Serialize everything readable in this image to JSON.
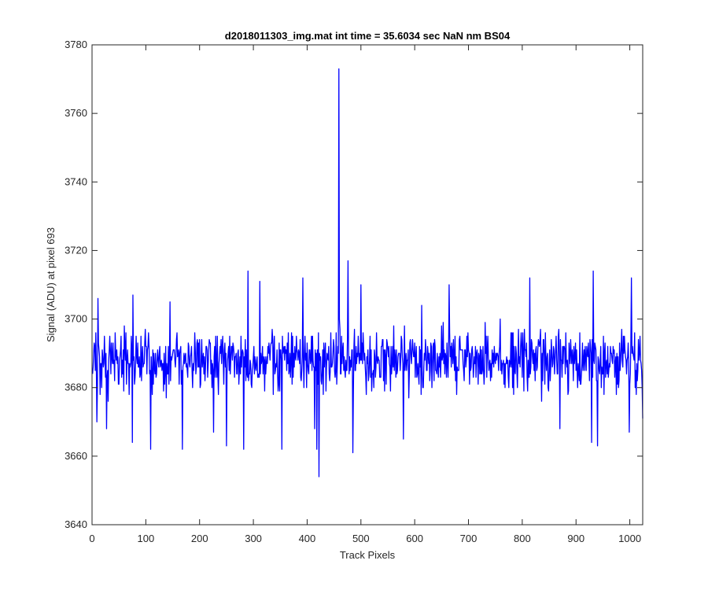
{
  "chart_data": {
    "type": "line",
    "title": "d2018011303_img.mat int time = 35.6034 sec  NaN nm BS04",
    "xlabel": "Track Pixels",
    "ylabel": "Signal (ADU) at pixel 693",
    "xlim": [
      0,
      1024
    ],
    "ylim": [
      3640,
      3780
    ],
    "xticks": [
      0,
      100,
      200,
      300,
      400,
      500,
      600,
      700,
      800,
      900,
      1000
    ],
    "yticks": [
      3640,
      3660,
      3680,
      3700,
      3720,
      3740,
      3760,
      3780
    ],
    "grid": false,
    "box": true,
    "series": [
      {
        "color": "#0000ff",
        "x_start": 1,
        "x_step": 1,
        "baseline": 3688,
        "noise_amplitude": 8,
        "count": 1024,
        "notable_points": [
          {
            "x": 1,
            "y": 3684
          },
          {
            "x": 5,
            "y": 3692
          },
          {
            "x": 9,
            "y": 3670
          },
          {
            "x": 11,
            "y": 3706
          },
          {
            "x": 27,
            "y": 3668
          },
          {
            "x": 75,
            "y": 3664
          },
          {
            "x": 76,
            "y": 3707
          },
          {
            "x": 109,
            "y": 3662
          },
          {
            "x": 145,
            "y": 3705
          },
          {
            "x": 168,
            "y": 3662
          },
          {
            "x": 226,
            "y": 3667
          },
          {
            "x": 250,
            "y": 3663
          },
          {
            "x": 282,
            "y": 3662
          },
          {
            "x": 290,
            "y": 3714
          },
          {
            "x": 312,
            "y": 3711
          },
          {
            "x": 353,
            "y": 3662
          },
          {
            "x": 392,
            "y": 3712
          },
          {
            "x": 414,
            "y": 3668
          },
          {
            "x": 418,
            "y": 3662
          },
          {
            "x": 422,
            "y": 3654
          },
          {
            "x": 459,
            "y": 3773
          },
          {
            "x": 460,
            "y": 3700
          },
          {
            "x": 476,
            "y": 3717
          },
          {
            "x": 485,
            "y": 3661
          },
          {
            "x": 500,
            "y": 3710
          },
          {
            "x": 579,
            "y": 3665
          },
          {
            "x": 613,
            "y": 3704
          },
          {
            "x": 664,
            "y": 3710
          },
          {
            "x": 814,
            "y": 3712
          },
          {
            "x": 870,
            "y": 3668
          },
          {
            "x": 929,
            "y": 3664
          },
          {
            "x": 932,
            "y": 3714
          },
          {
            "x": 940,
            "y": 3663
          },
          {
            "x": 999,
            "y": 3667
          },
          {
            "x": 1003,
            "y": 3712
          },
          {
            "x": 1010,
            "y": 3680
          },
          {
            "x": 1023,
            "y": 3680
          },
          {
            "x": 1024,
            "y": 3671
          }
        ]
      }
    ]
  }
}
